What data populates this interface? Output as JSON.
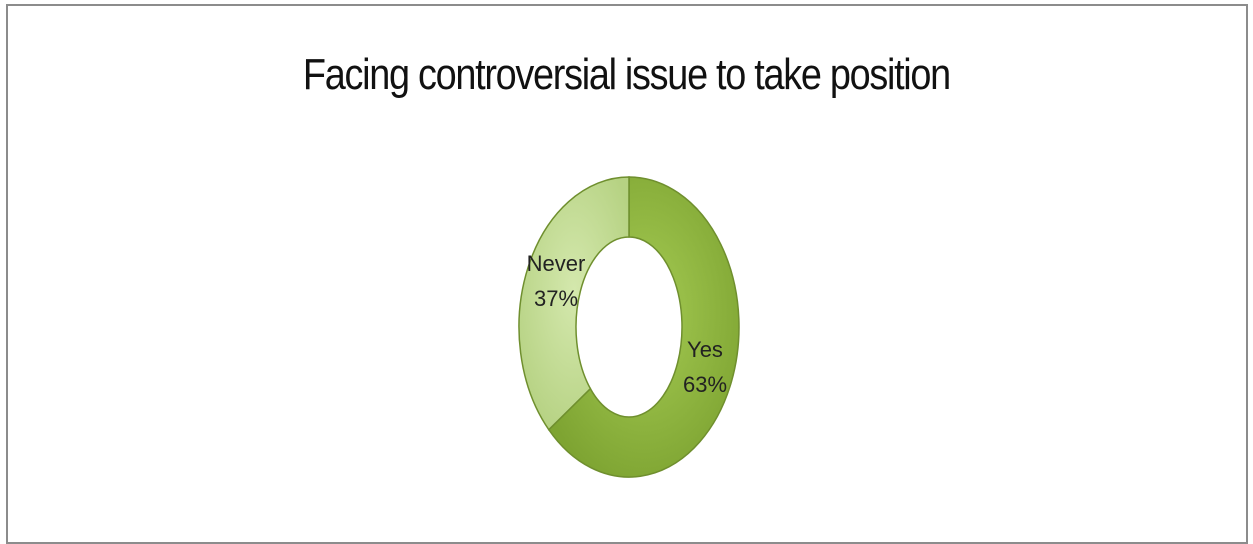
{
  "chart_data": {
    "type": "pie",
    "title": "Facing controversial issue to take position",
    "categories": [
      "Yes",
      "Never"
    ],
    "values": [
      63,
      37
    ],
    "labels": [
      {
        "category": "Yes",
        "percent": "63%"
      },
      {
        "category": "Never",
        "percent": "37%"
      }
    ],
    "colors": {
      "Yes": "#8ab43c",
      "Never": "#c6dd9a",
      "edge": "#6f8f2e"
    },
    "donut": true
  }
}
